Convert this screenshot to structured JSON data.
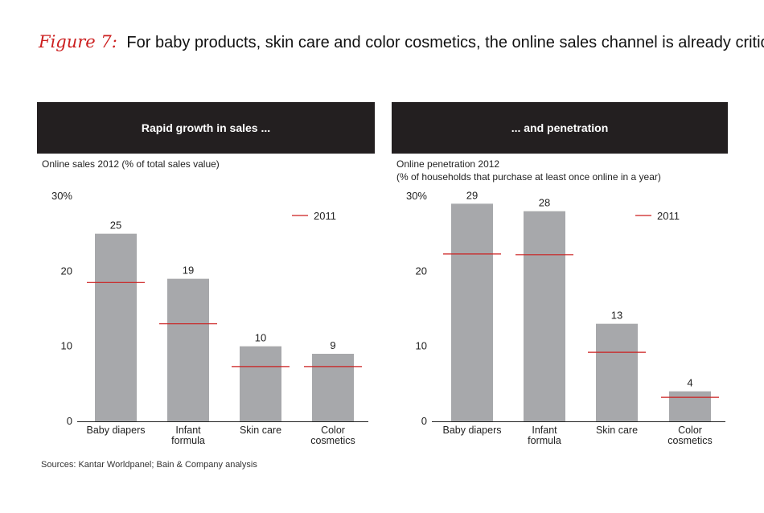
{
  "figure": {
    "label": "Figure 7:",
    "title": "For baby products, skin care and color cosmetics, the online sales channel is already critical"
  },
  "source": "Sources: Kantar Worldpanel; Bain & Company analysis",
  "colors": {
    "bar": "#a7a8ab",
    "marker": "#cc1f1f",
    "header_bg": "#231f20",
    "label_accent": "#cc1f1f"
  },
  "chart_data": [
    {
      "type": "bar",
      "header": "Rapid growth in sales ...",
      "subtitle_lines": [
        "Online sales 2012 (% of total sales value)"
      ],
      "categories": [
        "Baby diapers",
        "Infant formula",
        "Skin care",
        "Color cosmetics"
      ],
      "category_lines": [
        [
          "Baby diapers"
        ],
        [
          "Infant",
          "formula"
        ],
        [
          "Skin care"
        ],
        [
          "Color",
          "cosmetics"
        ]
      ],
      "series": [
        {
          "name": "2012",
          "values": [
            25,
            19,
            10,
            9
          ]
        },
        {
          "name": "2011",
          "values": [
            18.5,
            13,
            7.3,
            7.3
          ]
        }
      ],
      "ylim": [
        0,
        30
      ],
      "yticks": [
        0,
        10,
        20,
        30
      ],
      "ytick_labels": [
        "0",
        "10",
        "20",
        "30%"
      ],
      "legend": "2011",
      "legend_position": "top-right"
    },
    {
      "type": "bar",
      "header": "... and penetration",
      "subtitle_lines": [
        "Online penetration 2012",
        "(% of households that purchase at least once online in a year)"
      ],
      "categories": [
        "Baby diapers",
        "Infant formula",
        "Skin care",
        "Color cosmetics"
      ],
      "category_lines": [
        [
          "Baby diapers"
        ],
        [
          "Infant",
          "formula"
        ],
        [
          "Skin care"
        ],
        [
          "Color",
          "cosmetics"
        ]
      ],
      "series": [
        {
          "name": "2012",
          "values": [
            29,
            28,
            13,
            4
          ]
        },
        {
          "name": "2011",
          "values": [
            22.3,
            22.2,
            9.2,
            3.2
          ]
        }
      ],
      "ylim": [
        0,
        30
      ],
      "yticks": [
        0,
        10,
        20,
        30
      ],
      "ytick_labels": [
        "0",
        "10",
        "20",
        "30%"
      ],
      "legend": "2011",
      "legend_position": "top-right"
    }
  ]
}
